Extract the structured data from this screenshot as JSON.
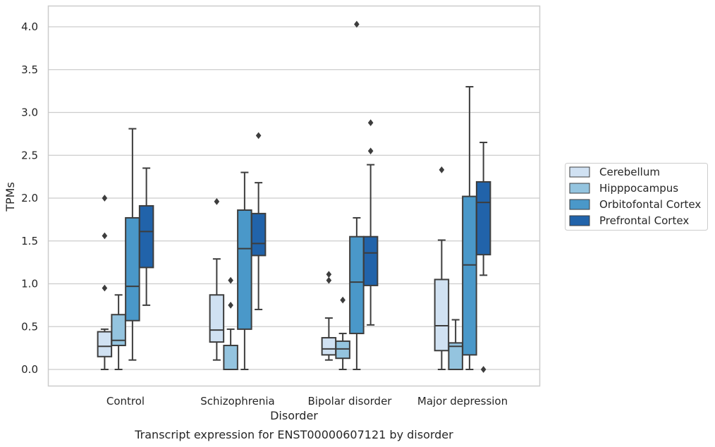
{
  "chart_data": {
    "type": "box",
    "title": "",
    "caption": "Transcript expression for ENST00000607121 by disorder",
    "xlabel": "Disorder",
    "ylabel": "TPMs",
    "ylim": [
      -0.2,
      4.25
    ],
    "yticks": [
      "0.0",
      "0.5",
      "1.0",
      "1.5",
      "2.0",
      "2.5",
      "3.0",
      "3.5",
      "4.0"
    ],
    "categories": [
      "Control",
      "Schizophrenia",
      "Bipolar disorder",
      "Major depression"
    ],
    "grid": "horizontal",
    "legend_position": "right",
    "series": [
      {
        "name": "Cerebellum",
        "color": "#d0e1f2",
        "boxes": [
          {
            "whisker_low": 0.0,
            "q1": 0.15,
            "median": 0.27,
            "q3": 0.44,
            "whisker_high": 0.47,
            "outliers": [
              0.95,
              1.56,
              2.0
            ]
          },
          {
            "whisker_low": 0.11,
            "q1": 0.32,
            "median": 0.46,
            "q3": 0.87,
            "whisker_high": 1.29,
            "outliers": [
              1.96
            ]
          },
          {
            "whisker_low": 0.11,
            "q1": 0.17,
            "median": 0.24,
            "q3": 0.37,
            "whisker_high": 0.6,
            "outliers": [
              1.04,
              1.11
            ]
          },
          {
            "whisker_low": 0.0,
            "q1": 0.22,
            "median": 0.51,
            "q3": 1.05,
            "whisker_high": 1.51,
            "outliers": [
              2.33
            ]
          }
        ]
      },
      {
        "name": "Hipppocampus",
        "color": "#94c4df",
        "boxes": [
          {
            "whisker_low": 0.0,
            "q1": 0.28,
            "median": 0.34,
            "q3": 0.64,
            "whisker_high": 0.87,
            "outliers": []
          },
          {
            "whisker_low": 0.0,
            "q1": 0.0,
            "median": 0.0,
            "q3": 0.28,
            "whisker_high": 0.47,
            "outliers": [
              0.75,
              1.04
            ]
          },
          {
            "whisker_low": 0.0,
            "q1": 0.13,
            "median": 0.24,
            "q3": 0.33,
            "whisker_high": 0.42,
            "outliers": [
              0.81
            ]
          },
          {
            "whisker_low": 0.0,
            "q1": 0.0,
            "median": 0.27,
            "q3": 0.31,
            "whisker_high": 0.58,
            "outliers": []
          }
        ]
      },
      {
        "name": "Orbitofontal Cortex",
        "color": "#4a98c9",
        "boxes": [
          {
            "whisker_low": 0.11,
            "q1": 0.57,
            "median": 0.97,
            "q3": 1.77,
            "whisker_high": 2.81,
            "outliers": []
          },
          {
            "whisker_low": 0.0,
            "q1": 0.47,
            "median": 1.41,
            "q3": 1.86,
            "whisker_high": 2.3,
            "outliers": []
          },
          {
            "whisker_low": 0.0,
            "q1": 0.42,
            "median": 1.02,
            "q3": 1.55,
            "whisker_high": 1.77,
            "outliers": [
              4.03
            ]
          },
          {
            "whisker_low": 0.0,
            "q1": 0.17,
            "median": 1.22,
            "q3": 2.02,
            "whisker_high": 3.3,
            "outliers": []
          }
        ]
      },
      {
        "name": "Prefrontal Cortex",
        "color": "#2163aa",
        "boxes": [
          {
            "whisker_low": 0.75,
            "q1": 1.19,
            "median": 1.61,
            "q3": 1.91,
            "whisker_high": 2.35,
            "outliers": []
          },
          {
            "whisker_low": 0.7,
            "q1": 1.33,
            "median": 1.47,
            "q3": 1.82,
            "whisker_high": 2.18,
            "outliers": [
              2.73
            ]
          },
          {
            "whisker_low": 0.52,
            "q1": 0.98,
            "median": 1.36,
            "q3": 1.55,
            "whisker_high": 2.39,
            "outliers": [
              2.55,
              2.88
            ]
          },
          {
            "whisker_low": 1.1,
            "q1": 1.34,
            "median": 1.95,
            "q3": 2.19,
            "whisker_high": 2.65,
            "outliers": [
              0.0
            ]
          }
        ]
      }
    ]
  }
}
